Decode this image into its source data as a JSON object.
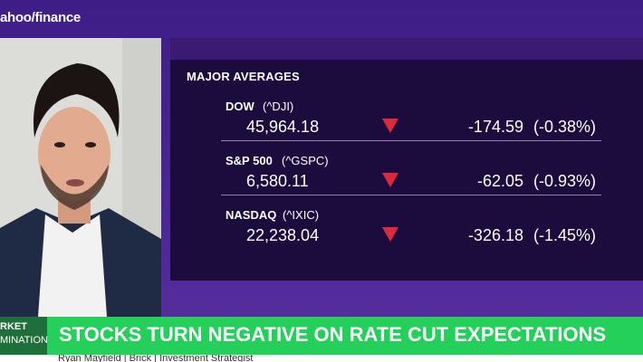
{
  "brand": {
    "logo_text": "ahoo/finance"
  },
  "panel": {
    "title": "MAJOR AVERAGES",
    "rows": [
      {
        "name": "DOW",
        "symbol": "(^DJI)",
        "price": "45,964.18",
        "change": "-174.59",
        "percent": "(-0.38%)",
        "direction": "down"
      },
      {
        "name": "S&P 500",
        "symbol": "(^GSPC)",
        "price": "6,580.11",
        "change": "-62.05",
        "percent": "(-0.93%)",
        "direction": "down"
      },
      {
        "name": "NASDAQ",
        "symbol": "(^IXIC)",
        "price": "22,238.04",
        "change": "-326.18",
        "percent": "(-1.45%)",
        "direction": "down"
      }
    ],
    "down_color": "#e0283c"
  },
  "lower_third": {
    "show_line1": "RKET",
    "show_line2": "MINATION",
    "headline": "STOCKS TURN NEGATIVE ON RATE CUT EXPECTATIONS",
    "subline": "Ryan Mayfield | Brick | Investment Strategist",
    "accent": "#24d05a"
  }
}
